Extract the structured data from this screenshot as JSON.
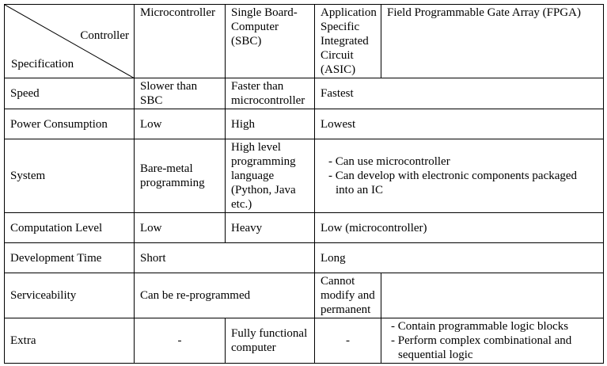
{
  "header": {
    "controller_label": "Controller",
    "specification_label": "Specification",
    "columns": [
      "Microcontroller",
      "Single Board-Computer (SBC)",
      "Application Specific Integrated Circuit (ASIC)",
      "Field Programmable Gate Array (FPGA)"
    ]
  },
  "rows": {
    "speed": {
      "label": "Speed",
      "mcu": "Slower than SBC",
      "sbc": "Faster than microcontroller",
      "asic_fpga": "Fastest"
    },
    "power": {
      "label": "Power Consumption",
      "mcu": "Low",
      "sbc": "High",
      "asic_fpga": "Lowest"
    },
    "system": {
      "label": "System",
      "mcu": "Bare-metal programming",
      "sbc": "High level programming language (Python, Java etc.)",
      "asic_fpga": [
        "- Can use microcontroller",
        "- Can develop with electronic components packaged into an IC"
      ]
    },
    "computation": {
      "label": "Computation Level",
      "mcu": "Low",
      "sbc": "Heavy",
      "asic_fpga": "Low (microcontroller)"
    },
    "devtime": {
      "label": "Development Time",
      "mcu_sbc": "Short",
      "asic_fpga": "Long"
    },
    "service": {
      "label": "Serviceability",
      "mcu_sbc": "Can be re-programmed",
      "asic": "Cannot modify and permanent",
      "fpga": ""
    },
    "extra": {
      "label": "Extra",
      "mcu": "-",
      "sbc": "Fully functional computer",
      "asic": "-",
      "fpga": [
        "- Contain programmable logic blocks",
        "- Perform complex combinational and sequential logic"
      ]
    }
  }
}
